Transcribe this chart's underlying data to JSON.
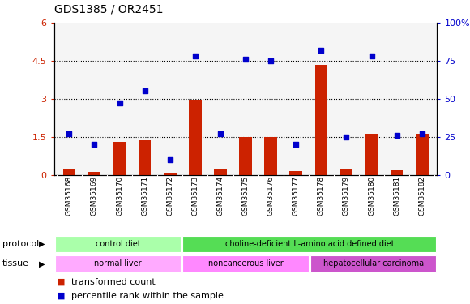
{
  "title": "GDS1385 / OR2451",
  "samples": [
    "GSM35168",
    "GSM35169",
    "GSM35170",
    "GSM35171",
    "GSM35172",
    "GSM35173",
    "GSM35174",
    "GSM35175",
    "GSM35176",
    "GSM35177",
    "GSM35178",
    "GSM35179",
    "GSM35180",
    "GSM35181",
    "GSM35182"
  ],
  "bar_values": [
    0.25,
    0.1,
    1.3,
    1.35,
    0.07,
    2.98,
    0.22,
    1.5,
    1.5,
    0.15,
    4.35,
    0.22,
    1.62,
    0.18,
    1.62
  ],
  "dot_values": [
    27,
    20,
    47,
    55,
    10,
    78,
    27,
    76,
    75,
    20,
    82,
    25,
    78,
    26,
    27
  ],
  "bar_color": "#cc2200",
  "dot_color": "#0000cc",
  "ylim_left": [
    0,
    6
  ],
  "ylim_right": [
    0,
    100
  ],
  "yticks_left": [
    0,
    1.5,
    3.0,
    4.5,
    6.0
  ],
  "ytick_labels_left": [
    "0",
    "1.5",
    "3",
    "4.5",
    "6"
  ],
  "yticks_right": [
    0,
    25,
    50,
    75,
    100
  ],
  "ytick_labels_right": [
    "0",
    "25",
    "50",
    "75",
    "100%"
  ],
  "grid_lines": [
    1.5,
    3.0,
    4.5
  ],
  "protocol_labels": [
    {
      "text": "control diet",
      "start": 0,
      "end": 4,
      "color": "#aaffaa"
    },
    {
      "text": "choline-deficient L-amino acid defined diet",
      "start": 5,
      "end": 14,
      "color": "#55dd55"
    }
  ],
  "tissue_labels": [
    {
      "text": "normal liver",
      "start": 0,
      "end": 4,
      "color": "#ffaaff"
    },
    {
      "text": "noncancerous liver",
      "start": 5,
      "end": 9,
      "color": "#ff88ff"
    },
    {
      "text": "hepatocellular carcinoma",
      "start": 10,
      "end": 14,
      "color": "#cc55cc"
    }
  ],
  "legend_bar_text": "transformed count",
  "legend_dot_text": "percentile rank within the sample",
  "protocol_label": "protocol",
  "tissue_label": "tissue",
  "bg_color": "#ffffff",
  "sample_band_color": "#cccccc",
  "left_tick_color": "#cc2200",
  "right_tick_color": "#0000cc"
}
